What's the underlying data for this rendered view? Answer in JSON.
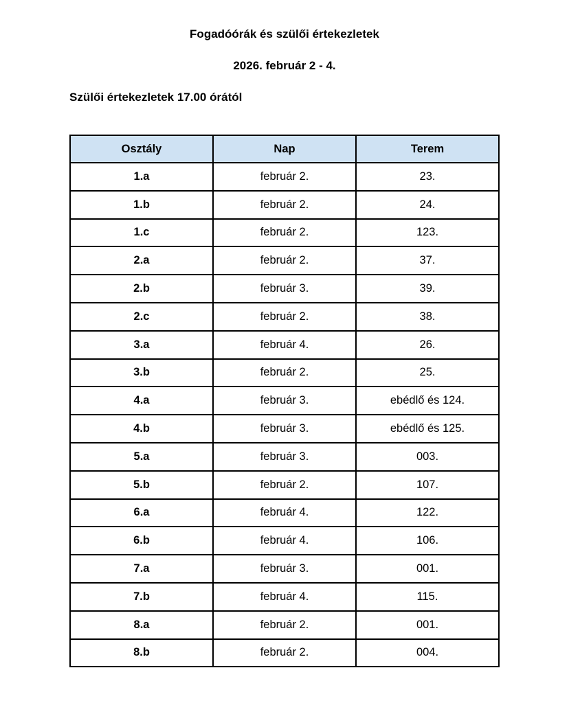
{
  "document": {
    "title": "Fogadóórák és szülői értekezletek",
    "date_range": "2026. február 2 - 4.",
    "subtitle": "Szülői értekezletek 17.00 órától"
  },
  "table": {
    "header_color": "#cfe2f3",
    "columns": [
      "Osztály",
      "Nap",
      "Terem"
    ],
    "rows": [
      [
        "1.a",
        "február 2.",
        "23."
      ],
      [
        "1.b",
        "február 2.",
        "24."
      ],
      [
        "1.c",
        "február 2.",
        "123."
      ],
      [
        "2.a",
        "február 2.",
        "37."
      ],
      [
        "2.b",
        "február 3.",
        "39."
      ],
      [
        "2.c",
        "február 2.",
        "38."
      ],
      [
        "3.a",
        "február 4.",
        "26."
      ],
      [
        "3.b",
        "február 2.",
        "25."
      ],
      [
        "4.a",
        "február 3.",
        "ebédlő és 124."
      ],
      [
        "4.b",
        "február 3.",
        "ebédlő és 125."
      ],
      [
        "5.a",
        "február 3.",
        "003."
      ],
      [
        "5.b",
        "február 2.",
        "107."
      ],
      [
        "6.a",
        "február 4.",
        "122."
      ],
      [
        "6.b",
        "február 4.",
        "106."
      ],
      [
        "7.a",
        "február 3.",
        "001."
      ],
      [
        "7.b",
        "február 4.",
        "115."
      ],
      [
        "8.a",
        "február 2.",
        "001."
      ],
      [
        "8.b",
        "február 2.",
        "004."
      ]
    ]
  }
}
